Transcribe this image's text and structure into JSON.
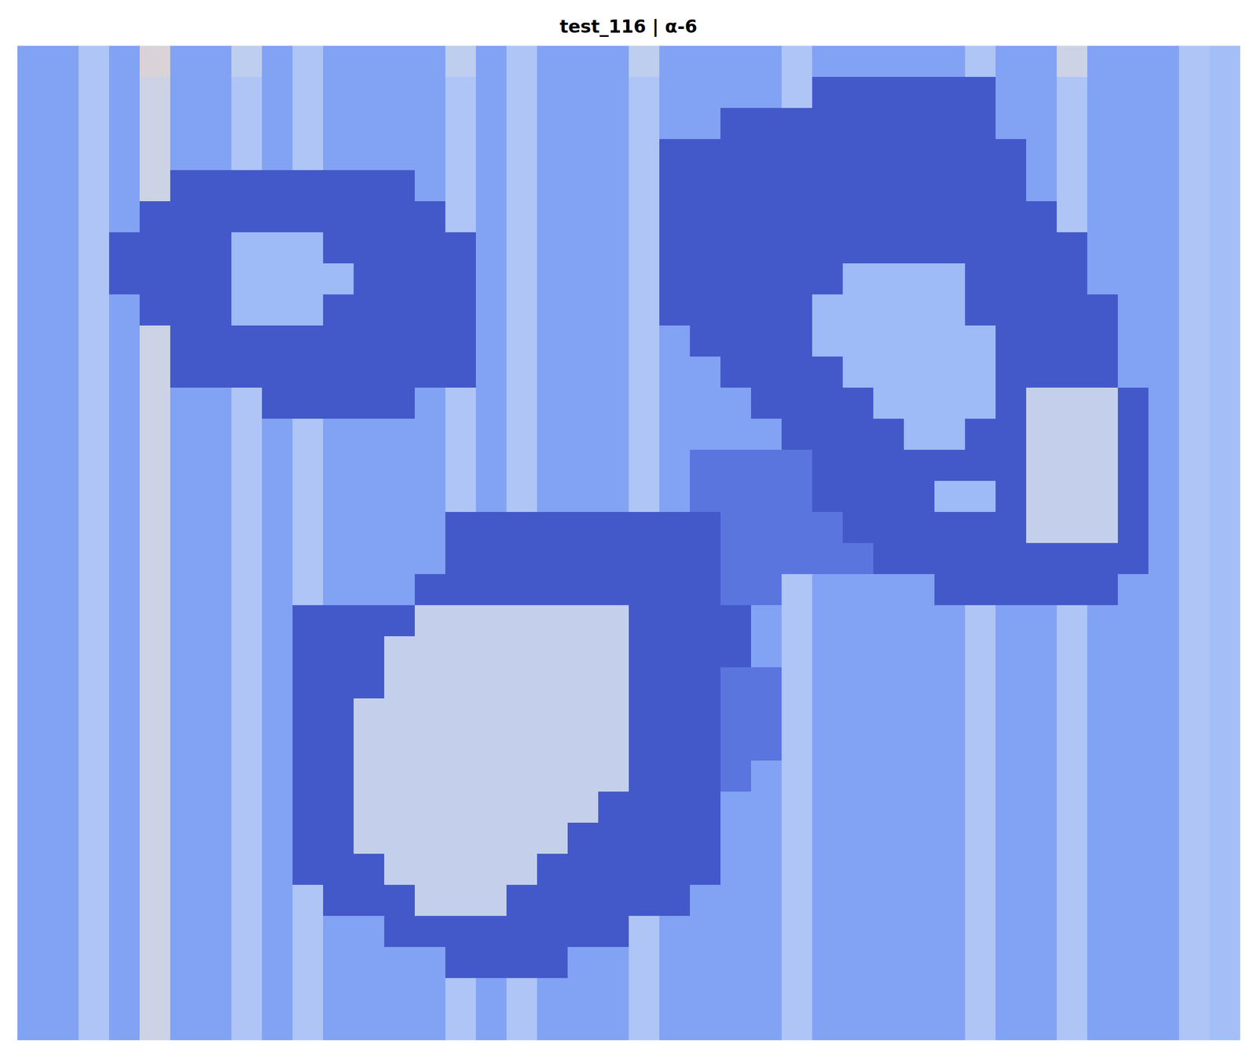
{
  "chart_data": {
    "type": "heatmap",
    "title": "test_116 | α-6",
    "tick_labels": false,
    "zlim": [
      0,
      1
    ],
    "values": [
      [
        0.22,
        0.22,
        0.35,
        0.22,
        0.5,
        0.22,
        0.22,
        0.4,
        0.22,
        0.35,
        0.22,
        0.22,
        0.22,
        0.22,
        0.4,
        0.22,
        0.35,
        0.22,
        0.22,
        0.22,
        0.4,
        0.22,
        0.22,
        0.22,
        0.22,
        0.35,
        0.22,
        0.22,
        0.22,
        0.22,
        0.22,
        0.35,
        0.22,
        0.22,
        0.45,
        0.22,
        0.22,
        0.22,
        0.35,
        0.32
      ],
      [
        0.22,
        0.22,
        0.35,
        0.22,
        0.45,
        0.22,
        0.22,
        0.35,
        0.22,
        0.35,
        0.22,
        0.22,
        0.22,
        0.22,
        0.35,
        0.22,
        0.35,
        0.22,
        0.22,
        0.22,
        0.35,
        0.22,
        0.22,
        0.22,
        0.22,
        0.35,
        0.03,
        0.03,
        0.03,
        0.03,
        0.03,
        0.03,
        0.22,
        0.22,
        0.35,
        0.22,
        0.22,
        0.22,
        0.35,
        0.32
      ],
      [
        0.22,
        0.22,
        0.35,
        0.22,
        0.45,
        0.22,
        0.22,
        0.35,
        0.22,
        0.35,
        0.22,
        0.22,
        0.22,
        0.22,
        0.35,
        0.22,
        0.35,
        0.22,
        0.22,
        0.22,
        0.35,
        0.22,
        0.22,
        0.03,
        0.03,
        0.03,
        0.03,
        0.03,
        0.03,
        0.03,
        0.03,
        0.03,
        0.22,
        0.22,
        0.35,
        0.22,
        0.22,
        0.22,
        0.35,
        0.32
      ],
      [
        0.22,
        0.22,
        0.35,
        0.22,
        0.45,
        0.22,
        0.22,
        0.35,
        0.22,
        0.35,
        0.22,
        0.22,
        0.22,
        0.22,
        0.35,
        0.22,
        0.35,
        0.22,
        0.22,
        0.22,
        0.35,
        0.03,
        0.03,
        0.03,
        0.03,
        0.03,
        0.03,
        0.03,
        0.03,
        0.03,
        0.03,
        0.03,
        0.03,
        0.22,
        0.35,
        0.22,
        0.22,
        0.22,
        0.35,
        0.32
      ],
      [
        0.22,
        0.22,
        0.35,
        0.22,
        0.45,
        0.03,
        0.03,
        0.03,
        0.03,
        0.03,
        0.03,
        0.03,
        0.03,
        0.22,
        0.35,
        0.22,
        0.35,
        0.22,
        0.22,
        0.22,
        0.35,
        0.03,
        0.03,
        0.03,
        0.03,
        0.03,
        0.03,
        0.03,
        0.03,
        0.03,
        0.03,
        0.03,
        0.03,
        0.22,
        0.35,
        0.22,
        0.22,
        0.22,
        0.35,
        0.32
      ],
      [
        0.22,
        0.22,
        0.35,
        0.22,
        0.03,
        0.03,
        0.03,
        0.03,
        0.03,
        0.03,
        0.03,
        0.03,
        0.03,
        0.03,
        0.35,
        0.22,
        0.35,
        0.22,
        0.22,
        0.22,
        0.35,
        0.03,
        0.03,
        0.03,
        0.03,
        0.03,
        0.03,
        0.03,
        0.03,
        0.03,
        0.03,
        0.03,
        0.03,
        0.03,
        0.35,
        0.22,
        0.22,
        0.22,
        0.35,
        0.32
      ],
      [
        0.22,
        0.22,
        0.35,
        0.03,
        0.03,
        0.03,
        0.03,
        0.3,
        0.3,
        0.3,
        0.03,
        0.03,
        0.03,
        0.03,
        0.03,
        0.22,
        0.35,
        0.22,
        0.22,
        0.22,
        0.35,
        0.03,
        0.03,
        0.03,
        0.03,
        0.03,
        0.03,
        0.03,
        0.03,
        0.03,
        0.03,
        0.03,
        0.03,
        0.03,
        0.03,
        0.22,
        0.22,
        0.22,
        0.35,
        0.32
      ],
      [
        0.22,
        0.22,
        0.35,
        0.03,
        0.03,
        0.03,
        0.03,
        0.3,
        0.3,
        0.3,
        0.3,
        0.03,
        0.03,
        0.03,
        0.03,
        0.22,
        0.35,
        0.22,
        0.22,
        0.22,
        0.35,
        0.03,
        0.03,
        0.03,
        0.03,
        0.03,
        0.03,
        0.3,
        0.3,
        0.3,
        0.3,
        0.03,
        0.03,
        0.03,
        0.03,
        0.22,
        0.22,
        0.22,
        0.35,
        0.32
      ],
      [
        0.22,
        0.22,
        0.35,
        0.22,
        0.03,
        0.03,
        0.03,
        0.3,
        0.3,
        0.3,
        0.03,
        0.03,
        0.03,
        0.03,
        0.03,
        0.22,
        0.35,
        0.22,
        0.22,
        0.22,
        0.35,
        0.03,
        0.03,
        0.03,
        0.03,
        0.03,
        0.3,
        0.3,
        0.3,
        0.3,
        0.3,
        0.03,
        0.03,
        0.03,
        0.03,
        0.03,
        0.22,
        0.22,
        0.35,
        0.32
      ],
      [
        0.22,
        0.22,
        0.35,
        0.22,
        0.45,
        0.03,
        0.03,
        0.03,
        0.03,
        0.03,
        0.03,
        0.03,
        0.03,
        0.03,
        0.03,
        0.22,
        0.35,
        0.22,
        0.22,
        0.22,
        0.35,
        0.22,
        0.03,
        0.03,
        0.03,
        0.03,
        0.3,
        0.3,
        0.3,
        0.3,
        0.3,
        0.3,
        0.03,
        0.03,
        0.03,
        0.03,
        0.22,
        0.22,
        0.35,
        0.32
      ],
      [
        0.22,
        0.22,
        0.35,
        0.22,
        0.45,
        0.03,
        0.03,
        0.03,
        0.03,
        0.03,
        0.03,
        0.03,
        0.03,
        0.03,
        0.03,
        0.22,
        0.35,
        0.22,
        0.22,
        0.22,
        0.35,
        0.22,
        0.22,
        0.03,
        0.03,
        0.03,
        0.03,
        0.3,
        0.3,
        0.3,
        0.3,
        0.3,
        0.03,
        0.03,
        0.03,
        0.03,
        0.22,
        0.22,
        0.35,
        0.32
      ],
      [
        0.22,
        0.22,
        0.35,
        0.22,
        0.45,
        0.22,
        0.22,
        0.35,
        0.03,
        0.03,
        0.03,
        0.03,
        0.03,
        0.22,
        0.35,
        0.22,
        0.35,
        0.22,
        0.22,
        0.22,
        0.35,
        0.22,
        0.22,
        0.22,
        0.03,
        0.03,
        0.03,
        0.03,
        0.3,
        0.3,
        0.3,
        0.3,
        0.03,
        0.42,
        0.42,
        0.42,
        0.03,
        0.22,
        0.35,
        0.32
      ],
      [
        0.22,
        0.22,
        0.35,
        0.22,
        0.45,
        0.22,
        0.22,
        0.35,
        0.22,
        0.35,
        0.22,
        0.22,
        0.22,
        0.22,
        0.35,
        0.22,
        0.35,
        0.22,
        0.22,
        0.22,
        0.35,
        0.22,
        0.22,
        0.22,
        0.22,
        0.03,
        0.03,
        0.03,
        0.03,
        0.3,
        0.3,
        0.03,
        0.03,
        0.42,
        0.42,
        0.42,
        0.03,
        0.22,
        0.35,
        0.32
      ],
      [
        0.22,
        0.22,
        0.35,
        0.22,
        0.45,
        0.22,
        0.22,
        0.35,
        0.22,
        0.35,
        0.22,
        0.22,
        0.22,
        0.22,
        0.35,
        0.22,
        0.35,
        0.22,
        0.22,
        0.22,
        0.35,
        0.22,
        0.1,
        0.1,
        0.1,
        0.1,
        0.03,
        0.03,
        0.03,
        0.03,
        0.03,
        0.03,
        0.03,
        0.42,
        0.42,
        0.42,
        0.03,
        0.22,
        0.35,
        0.32
      ],
      [
        0.22,
        0.22,
        0.35,
        0.22,
        0.45,
        0.22,
        0.22,
        0.35,
        0.22,
        0.35,
        0.22,
        0.22,
        0.22,
        0.22,
        0.35,
        0.22,
        0.35,
        0.22,
        0.22,
        0.22,
        0.35,
        0.22,
        0.1,
        0.1,
        0.1,
        0.1,
        0.03,
        0.03,
        0.03,
        0.03,
        0.3,
        0.3,
        0.03,
        0.42,
        0.42,
        0.42,
        0.03,
        0.22,
        0.35,
        0.32
      ],
      [
        0.22,
        0.22,
        0.35,
        0.22,
        0.45,
        0.22,
        0.22,
        0.35,
        0.22,
        0.35,
        0.22,
        0.22,
        0.22,
        0.22,
        0.03,
        0.03,
        0.03,
        0.03,
        0.03,
        0.03,
        0.03,
        0.03,
        0.03,
        0.1,
        0.1,
        0.1,
        0.1,
        0.03,
        0.03,
        0.03,
        0.03,
        0.03,
        0.03,
        0.42,
        0.42,
        0.42,
        0.03,
        0.22,
        0.35,
        0.32
      ],
      [
        0.22,
        0.22,
        0.35,
        0.22,
        0.45,
        0.22,
        0.22,
        0.35,
        0.22,
        0.35,
        0.22,
        0.22,
        0.22,
        0.22,
        0.03,
        0.03,
        0.03,
        0.03,
        0.03,
        0.03,
        0.03,
        0.03,
        0.03,
        0.1,
        0.1,
        0.1,
        0.1,
        0.1,
        0.03,
        0.03,
        0.03,
        0.03,
        0.03,
        0.03,
        0.03,
        0.03,
        0.03,
        0.22,
        0.35,
        0.32
      ],
      [
        0.22,
        0.22,
        0.35,
        0.22,
        0.45,
        0.22,
        0.22,
        0.35,
        0.22,
        0.35,
        0.22,
        0.22,
        0.22,
        0.03,
        0.03,
        0.03,
        0.03,
        0.03,
        0.03,
        0.03,
        0.03,
        0.03,
        0.03,
        0.1,
        0.1,
        0.35,
        0.22,
        0.22,
        0.22,
        0.22,
        0.03,
        0.03,
        0.03,
        0.03,
        0.03,
        0.03,
        0.22,
        0.22,
        0.35,
        0.32
      ],
      [
        0.22,
        0.22,
        0.35,
        0.22,
        0.45,
        0.22,
        0.22,
        0.35,
        0.22,
        0.03,
        0.03,
        0.03,
        0.03,
        0.42,
        0.42,
        0.42,
        0.42,
        0.42,
        0.42,
        0.42,
        0.03,
        0.03,
        0.03,
        0.03,
        0.22,
        0.35,
        0.22,
        0.22,
        0.22,
        0.22,
        0.22,
        0.35,
        0.22,
        0.22,
        0.35,
        0.22,
        0.22,
        0.22,
        0.35,
        0.32
      ],
      [
        0.22,
        0.22,
        0.35,
        0.22,
        0.45,
        0.22,
        0.22,
        0.35,
        0.22,
        0.03,
        0.03,
        0.03,
        0.42,
        0.42,
        0.42,
        0.42,
        0.42,
        0.42,
        0.42,
        0.42,
        0.03,
        0.03,
        0.03,
        0.03,
        0.22,
        0.35,
        0.22,
        0.22,
        0.22,
        0.22,
        0.22,
        0.35,
        0.22,
        0.22,
        0.35,
        0.22,
        0.22,
        0.22,
        0.35,
        0.32
      ],
      [
        0.22,
        0.22,
        0.35,
        0.22,
        0.45,
        0.22,
        0.22,
        0.35,
        0.22,
        0.03,
        0.03,
        0.03,
        0.42,
        0.42,
        0.42,
        0.42,
        0.42,
        0.42,
        0.42,
        0.42,
        0.03,
        0.03,
        0.03,
        0.1,
        0.1,
        0.35,
        0.22,
        0.22,
        0.22,
        0.22,
        0.22,
        0.35,
        0.22,
        0.22,
        0.35,
        0.22,
        0.22,
        0.22,
        0.35,
        0.32
      ],
      [
        0.22,
        0.22,
        0.35,
        0.22,
        0.45,
        0.22,
        0.22,
        0.35,
        0.22,
        0.03,
        0.03,
        0.42,
        0.42,
        0.42,
        0.42,
        0.42,
        0.42,
        0.42,
        0.42,
        0.42,
        0.03,
        0.03,
        0.03,
        0.1,
        0.1,
        0.35,
        0.22,
        0.22,
        0.22,
        0.22,
        0.22,
        0.35,
        0.22,
        0.22,
        0.35,
        0.22,
        0.22,
        0.22,
        0.35,
        0.32
      ],
      [
        0.22,
        0.22,
        0.35,
        0.22,
        0.45,
        0.22,
        0.22,
        0.35,
        0.22,
        0.03,
        0.03,
        0.42,
        0.42,
        0.42,
        0.42,
        0.42,
        0.42,
        0.42,
        0.42,
        0.42,
        0.03,
        0.03,
        0.03,
        0.1,
        0.1,
        0.35,
        0.22,
        0.22,
        0.22,
        0.22,
        0.22,
        0.35,
        0.22,
        0.22,
        0.35,
        0.22,
        0.22,
        0.22,
        0.35,
        0.32
      ],
      [
        0.22,
        0.22,
        0.35,
        0.22,
        0.45,
        0.22,
        0.22,
        0.35,
        0.22,
        0.03,
        0.03,
        0.42,
        0.42,
        0.42,
        0.42,
        0.42,
        0.42,
        0.42,
        0.42,
        0.42,
        0.03,
        0.03,
        0.03,
        0.1,
        0.22,
        0.35,
        0.22,
        0.22,
        0.22,
        0.22,
        0.22,
        0.35,
        0.22,
        0.22,
        0.35,
        0.22,
        0.22,
        0.22,
        0.35,
        0.32
      ],
      [
        0.22,
        0.22,
        0.35,
        0.22,
        0.45,
        0.22,
        0.22,
        0.35,
        0.22,
        0.03,
        0.03,
        0.42,
        0.42,
        0.42,
        0.42,
        0.42,
        0.42,
        0.42,
        0.42,
        0.03,
        0.03,
        0.03,
        0.03,
        0.22,
        0.22,
        0.35,
        0.22,
        0.22,
        0.22,
        0.22,
        0.22,
        0.35,
        0.22,
        0.22,
        0.35,
        0.22,
        0.22,
        0.22,
        0.35,
        0.32
      ],
      [
        0.22,
        0.22,
        0.35,
        0.22,
        0.45,
        0.22,
        0.22,
        0.35,
        0.22,
        0.03,
        0.03,
        0.42,
        0.42,
        0.42,
        0.42,
        0.42,
        0.42,
        0.42,
        0.03,
        0.03,
        0.03,
        0.03,
        0.03,
        0.22,
        0.22,
        0.35,
        0.22,
        0.22,
        0.22,
        0.22,
        0.22,
        0.35,
        0.22,
        0.22,
        0.35,
        0.22,
        0.22,
        0.22,
        0.35,
        0.32
      ],
      [
        0.22,
        0.22,
        0.35,
        0.22,
        0.45,
        0.22,
        0.22,
        0.35,
        0.22,
        0.03,
        0.03,
        0.03,
        0.42,
        0.42,
        0.42,
        0.42,
        0.42,
        0.03,
        0.03,
        0.03,
        0.03,
        0.03,
        0.03,
        0.22,
        0.22,
        0.35,
        0.22,
        0.22,
        0.22,
        0.22,
        0.22,
        0.35,
        0.22,
        0.22,
        0.35,
        0.22,
        0.22,
        0.22,
        0.35,
        0.32
      ],
      [
        0.22,
        0.22,
        0.35,
        0.22,
        0.45,
        0.22,
        0.22,
        0.35,
        0.22,
        0.35,
        0.03,
        0.03,
        0.03,
        0.42,
        0.42,
        0.42,
        0.03,
        0.03,
        0.03,
        0.03,
        0.03,
        0.03,
        0.22,
        0.22,
        0.22,
        0.35,
        0.22,
        0.22,
        0.22,
        0.22,
        0.22,
        0.35,
        0.22,
        0.22,
        0.35,
        0.22,
        0.22,
        0.22,
        0.35,
        0.32
      ],
      [
        0.22,
        0.22,
        0.35,
        0.22,
        0.45,
        0.22,
        0.22,
        0.35,
        0.22,
        0.35,
        0.22,
        0.22,
        0.03,
        0.03,
        0.03,
        0.03,
        0.03,
        0.03,
        0.03,
        0.03,
        0.35,
        0.22,
        0.22,
        0.22,
        0.22,
        0.35,
        0.22,
        0.22,
        0.22,
        0.22,
        0.22,
        0.35,
        0.22,
        0.22,
        0.35,
        0.22,
        0.22,
        0.22,
        0.35,
        0.32
      ],
      [
        0.22,
        0.22,
        0.35,
        0.22,
        0.45,
        0.22,
        0.22,
        0.35,
        0.22,
        0.35,
        0.22,
        0.22,
        0.22,
        0.22,
        0.03,
        0.03,
        0.03,
        0.03,
        0.22,
        0.22,
        0.35,
        0.22,
        0.22,
        0.22,
        0.22,
        0.35,
        0.22,
        0.22,
        0.22,
        0.22,
        0.22,
        0.35,
        0.22,
        0.22,
        0.35,
        0.22,
        0.22,
        0.22,
        0.35,
        0.32
      ],
      [
        0.22,
        0.22,
        0.35,
        0.22,
        0.45,
        0.22,
        0.22,
        0.35,
        0.22,
        0.35,
        0.22,
        0.22,
        0.22,
        0.22,
        0.35,
        0.22,
        0.35,
        0.22,
        0.22,
        0.22,
        0.35,
        0.22,
        0.22,
        0.22,
        0.22,
        0.35,
        0.22,
        0.22,
        0.22,
        0.22,
        0.22,
        0.35,
        0.22,
        0.22,
        0.35,
        0.22,
        0.22,
        0.22,
        0.35,
        0.32
      ],
      [
        0.22,
        0.22,
        0.35,
        0.22,
        0.45,
        0.22,
        0.22,
        0.35,
        0.22,
        0.35,
        0.22,
        0.22,
        0.22,
        0.22,
        0.35,
        0.22,
        0.35,
        0.22,
        0.22,
        0.22,
        0.35,
        0.22,
        0.22,
        0.22,
        0.22,
        0.35,
        0.22,
        0.22,
        0.22,
        0.22,
        0.22,
        0.35,
        0.22,
        0.22,
        0.35,
        0.22,
        0.22,
        0.22,
        0.35,
        0.32
      ]
    ]
  }
}
